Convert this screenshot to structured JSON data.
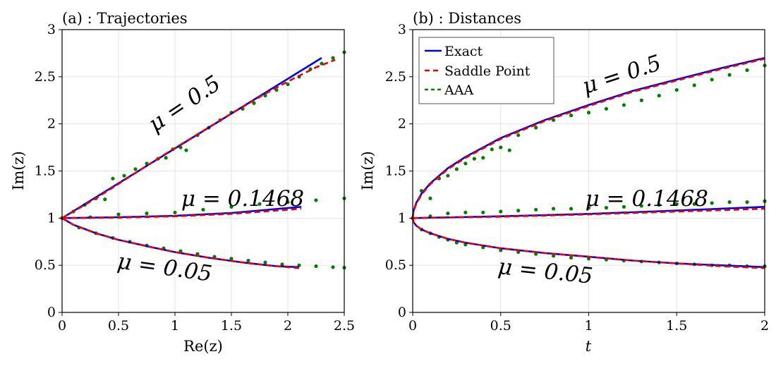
{
  "chart_data": [
    {
      "panel": "a",
      "type": "line",
      "title": "(a) :  Trajectories",
      "xlabel": "Re(z)",
      "ylabel": "Im(z)",
      "xlim": [
        0,
        2.5
      ],
      "ylim": [
        0,
        3
      ],
      "xticks": [
        "0",
        "0.5",
        "1",
        "1.5",
        "2",
        "2.5"
      ],
      "yticks": [
        "0",
        "0.5",
        "1",
        "1.5",
        "2",
        "2.5",
        "3"
      ],
      "grid": true,
      "series": [
        {
          "name": "Exact",
          "group": "μ = 0.5",
          "style": "solid",
          "color": "#0000ee",
          "x": [
            0,
            2.3
          ],
          "y": [
            1,
            2.7
          ]
        },
        {
          "name": "Saddle Point",
          "group": "μ = 0.5",
          "style": "dashed",
          "color": "#ee0000",
          "x": [
            0,
            0.3,
            0.6,
            0.9,
            1.2,
            1.5,
            1.8,
            2.05,
            2.25,
            2.42
          ],
          "y": [
            1,
            1.21,
            1.44,
            1.67,
            1.89,
            2.11,
            2.32,
            2.48,
            2.6,
            2.68
          ]
        },
        {
          "name": "AAA",
          "group": "μ = 0.5",
          "style": "dotted",
          "color": "#008000",
          "x": [
            0,
            0.1,
            0.2,
            0.3,
            0.38,
            0.45,
            0.55,
            0.65,
            0.75,
            0.85,
            0.92,
            0.98,
            1.05,
            1.1,
            1.2,
            1.3,
            1.4,
            1.5,
            1.6,
            1.7,
            1.8,
            1.9,
            2.0,
            2.1,
            2.2,
            2.3,
            2.4,
            2.5
          ],
          "y": [
            1,
            1.07,
            1.14,
            1.21,
            1.2,
            1.42,
            1.45,
            1.52,
            1.58,
            1.63,
            1.64,
            1.73,
            1.75,
            1.72,
            1.88,
            1.96,
            2.04,
            2.12,
            2.16,
            2.22,
            2.3,
            2.36,
            2.42,
            2.5,
            2.58,
            2.64,
            2.7,
            2.76
          ]
        },
        {
          "name": "Exact",
          "group": "μ = 0.1468",
          "style": "solid",
          "color": "#0000ee",
          "x": [
            0,
            0.5,
            1.0,
            1.5,
            2.12
          ],
          "y": [
            1,
            1.01,
            1.025,
            1.055,
            1.12
          ]
        },
        {
          "name": "Saddle Point",
          "group": "μ = 0.1468",
          "style": "dashed",
          "color": "#ee0000",
          "x": [
            0,
            0.5,
            1.0,
            1.5,
            2.12
          ],
          "y": [
            1,
            1.005,
            1.02,
            1.045,
            1.1
          ]
        },
        {
          "name": "AAA",
          "group": "μ = 0.1468",
          "style": "dotted",
          "color": "#008000",
          "x": [
            0,
            0.25,
            0.5,
            0.75,
            1.0,
            1.25,
            1.5,
            1.75,
            2.0,
            2.25,
            2.5
          ],
          "y": [
            1,
            1.01,
            1.04,
            1.05,
            1.06,
            1.09,
            1.12,
            1.15,
            1.17,
            1.19,
            1.21
          ]
        },
        {
          "name": "Exact",
          "group": "μ = 0.05",
          "style": "solid",
          "color": "#0000ee",
          "x": [
            0,
            0.1,
            0.3,
            0.5,
            0.8,
            1.0,
            1.3,
            1.6,
            1.9,
            2.1
          ],
          "y": [
            1,
            0.93,
            0.84,
            0.77,
            0.69,
            0.64,
            0.58,
            0.53,
            0.49,
            0.48
          ]
        },
        {
          "name": "Saddle Point",
          "group": "μ = 0.05",
          "style": "dashed",
          "color": "#ee0000",
          "x": [
            0,
            0.1,
            0.3,
            0.5,
            0.8,
            1.0,
            1.3,
            1.6,
            1.9,
            2.1
          ],
          "y": [
            1,
            0.93,
            0.84,
            0.77,
            0.69,
            0.64,
            0.58,
            0.53,
            0.49,
            0.47
          ]
        },
        {
          "name": "AAA",
          "group": "μ = 0.05",
          "style": "dotted",
          "color": "#008000",
          "x": [
            0,
            0.15,
            0.3,
            0.45,
            0.6,
            0.75,
            0.9,
            1.05,
            1.2,
            1.35,
            1.5,
            1.65,
            1.8,
            1.95,
            2.1,
            2.25,
            2.4,
            2.5
          ],
          "y": [
            1,
            0.9,
            0.84,
            0.79,
            0.75,
            0.71,
            0.68,
            0.65,
            0.62,
            0.59,
            0.57,
            0.55,
            0.53,
            0.51,
            0.5,
            0.49,
            0.48,
            0.475
          ]
        }
      ],
      "annotations": [
        {
          "text": "μ = 0.5",
          "at": [
            1.12,
            2.15
          ],
          "angle": -34
        },
        {
          "text": "μ = 0.1468",
          "at": [
            1.6,
            1.13
          ],
          "angle": 0
        },
        {
          "text": "μ = 0.05",
          "at": [
            0.9,
            0.4
          ],
          "angle": 8
        }
      ]
    },
    {
      "panel": "b",
      "type": "line",
      "title": "(b) :  Distances",
      "xlabel": "t",
      "ylabel": "Im(z)",
      "xlim": [
        0,
        2
      ],
      "ylim": [
        0,
        3
      ],
      "xticks": [
        "0",
        "0.5",
        "1",
        "1.5",
        "2"
      ],
      "yticks": [
        "0",
        "0.5",
        "1",
        "1.5",
        "2",
        "2.5",
        "3"
      ],
      "grid": true,
      "legend": {
        "placement": "top-left",
        "entries": [
          {
            "label": "Exact",
            "color": "#0000ee",
            "style": "solid"
          },
          {
            "label": "Saddle Point",
            "color": "#ee0000",
            "style": "dashed"
          },
          {
            "label": "AAA",
            "color": "#008000",
            "style": "dashed"
          }
        ]
      },
      "series": [
        {
          "name": "Exact",
          "group": "μ = 0.5",
          "style": "solid",
          "color": "#0000ee",
          "x": [
            0,
            0.005,
            0.02,
            0.05,
            0.1,
            0.2,
            0.3,
            0.5,
            0.75,
            1.0,
            1.25,
            1.5,
            1.75,
            2.0
          ],
          "y": [
            1,
            1.08,
            1.16,
            1.26,
            1.37,
            1.53,
            1.65,
            1.85,
            2.04,
            2.2,
            2.35,
            2.47,
            2.59,
            2.7
          ]
        },
        {
          "name": "Saddle Point",
          "group": "μ = 0.5",
          "style": "dashed",
          "color": "#ee0000",
          "x": [
            0,
            0.005,
            0.02,
            0.05,
            0.1,
            0.2,
            0.3,
            0.5,
            0.75,
            1.0,
            1.25,
            1.5,
            1.75,
            2.0
          ],
          "y": [
            1,
            1.07,
            1.15,
            1.25,
            1.36,
            1.52,
            1.64,
            1.84,
            2.03,
            2.19,
            2.34,
            2.46,
            2.58,
            2.69
          ]
        },
        {
          "name": "AAA",
          "group": "μ = 0.5",
          "style": "dotted",
          "color": "#008000",
          "x": [
            0,
            0.05,
            0.1,
            0.15,
            0.2,
            0.25,
            0.3,
            0.35,
            0.4,
            0.45,
            0.5,
            0.55,
            0.6,
            0.7,
            0.8,
            0.9,
            1.0,
            1.1,
            1.2,
            1.3,
            1.4,
            1.5,
            1.6,
            1.7,
            1.8,
            1.9,
            2.0
          ],
          "y": [
            1,
            1.29,
            1.21,
            1.42,
            1.45,
            1.52,
            1.58,
            1.63,
            1.64,
            1.73,
            1.75,
            1.72,
            1.88,
            1.96,
            2.04,
            2.09,
            2.12,
            2.16,
            2.2,
            2.25,
            2.3,
            2.36,
            2.41,
            2.47,
            2.52,
            2.57,
            2.62
          ]
        },
        {
          "name": "Exact",
          "group": "μ = 0.1468",
          "style": "solid",
          "color": "#0000ee",
          "x": [
            0,
            0.5,
            1.0,
            1.5,
            2.0
          ],
          "y": [
            1,
            1.02,
            1.045,
            1.08,
            1.12
          ]
        },
        {
          "name": "Saddle Point",
          "group": "μ = 0.1468",
          "style": "dashed",
          "color": "#ee0000",
          "x": [
            0,
            0.5,
            1.0,
            1.5,
            2.0
          ],
          "y": [
            1,
            1.015,
            1.04,
            1.07,
            1.1
          ]
        },
        {
          "name": "AAA",
          "group": "μ = 0.1468",
          "style": "dotted",
          "color": "#008000",
          "x": [
            0,
            0.1,
            0.2,
            0.3,
            0.4,
            0.5,
            0.6,
            0.7,
            0.8,
            0.9,
            1.0,
            1.1,
            1.2,
            1.3,
            1.4,
            1.5,
            1.6,
            1.7,
            1.8,
            1.9,
            2.0
          ],
          "y": [
            1,
            1.02,
            1.05,
            1.06,
            1.06,
            1.07,
            1.08,
            1.09,
            1.1,
            1.1,
            1.11,
            1.11,
            1.12,
            1.13,
            1.14,
            1.15,
            1.15,
            1.16,
            1.17,
            1.17,
            1.18
          ]
        },
        {
          "name": "Exact",
          "group": "μ = 0.05",
          "style": "solid",
          "color": "#0000ee",
          "x": [
            0,
            0.005,
            0.02,
            0.05,
            0.1,
            0.2,
            0.3,
            0.5,
            0.75,
            1.0,
            1.25,
            1.5,
            1.75,
            2.0
          ],
          "y": [
            1,
            0.96,
            0.92,
            0.88,
            0.84,
            0.78,
            0.74,
            0.68,
            0.63,
            0.59,
            0.55,
            0.52,
            0.5,
            0.48
          ]
        },
        {
          "name": "Saddle Point",
          "group": "μ = 0.05",
          "style": "dashed",
          "color": "#ee0000",
          "x": [
            0,
            0.005,
            0.02,
            0.05,
            0.1,
            0.2,
            0.3,
            0.5,
            0.75,
            1.0,
            1.25,
            1.5,
            1.75,
            2.0
          ],
          "y": [
            1,
            0.96,
            0.92,
            0.88,
            0.84,
            0.78,
            0.74,
            0.68,
            0.63,
            0.59,
            0.55,
            0.52,
            0.49,
            0.47
          ]
        },
        {
          "name": "AAA",
          "group": "μ = 0.05",
          "style": "dotted",
          "color": "#008000",
          "x": [
            0,
            0.05,
            0.1,
            0.15,
            0.2,
            0.25,
            0.3,
            0.4,
            0.5,
            0.6,
            0.7,
            0.8,
            0.9,
            1.0,
            1.1,
            1.2,
            1.3,
            1.4,
            1.5,
            1.6,
            1.7,
            1.8,
            1.9,
            2.0
          ],
          "y": [
            1,
            0.88,
            0.84,
            0.8,
            0.77,
            0.74,
            0.72,
            0.69,
            0.66,
            0.64,
            0.62,
            0.6,
            0.58,
            0.57,
            0.56,
            0.55,
            0.54,
            0.53,
            0.52,
            0.51,
            0.5,
            0.5,
            0.49,
            0.49
          ]
        }
      ],
      "annotations": [
        {
          "text": "μ = 0.5",
          "at": [
            1.2,
            2.45
          ],
          "angle": -18
        },
        {
          "text": "μ = 0.1468",
          "at": [
            1.33,
            1.13
          ],
          "angle": 0
        },
        {
          "text": "μ = 0.05",
          "at": [
            0.75,
            0.36
          ],
          "angle": 6
        }
      ]
    }
  ]
}
